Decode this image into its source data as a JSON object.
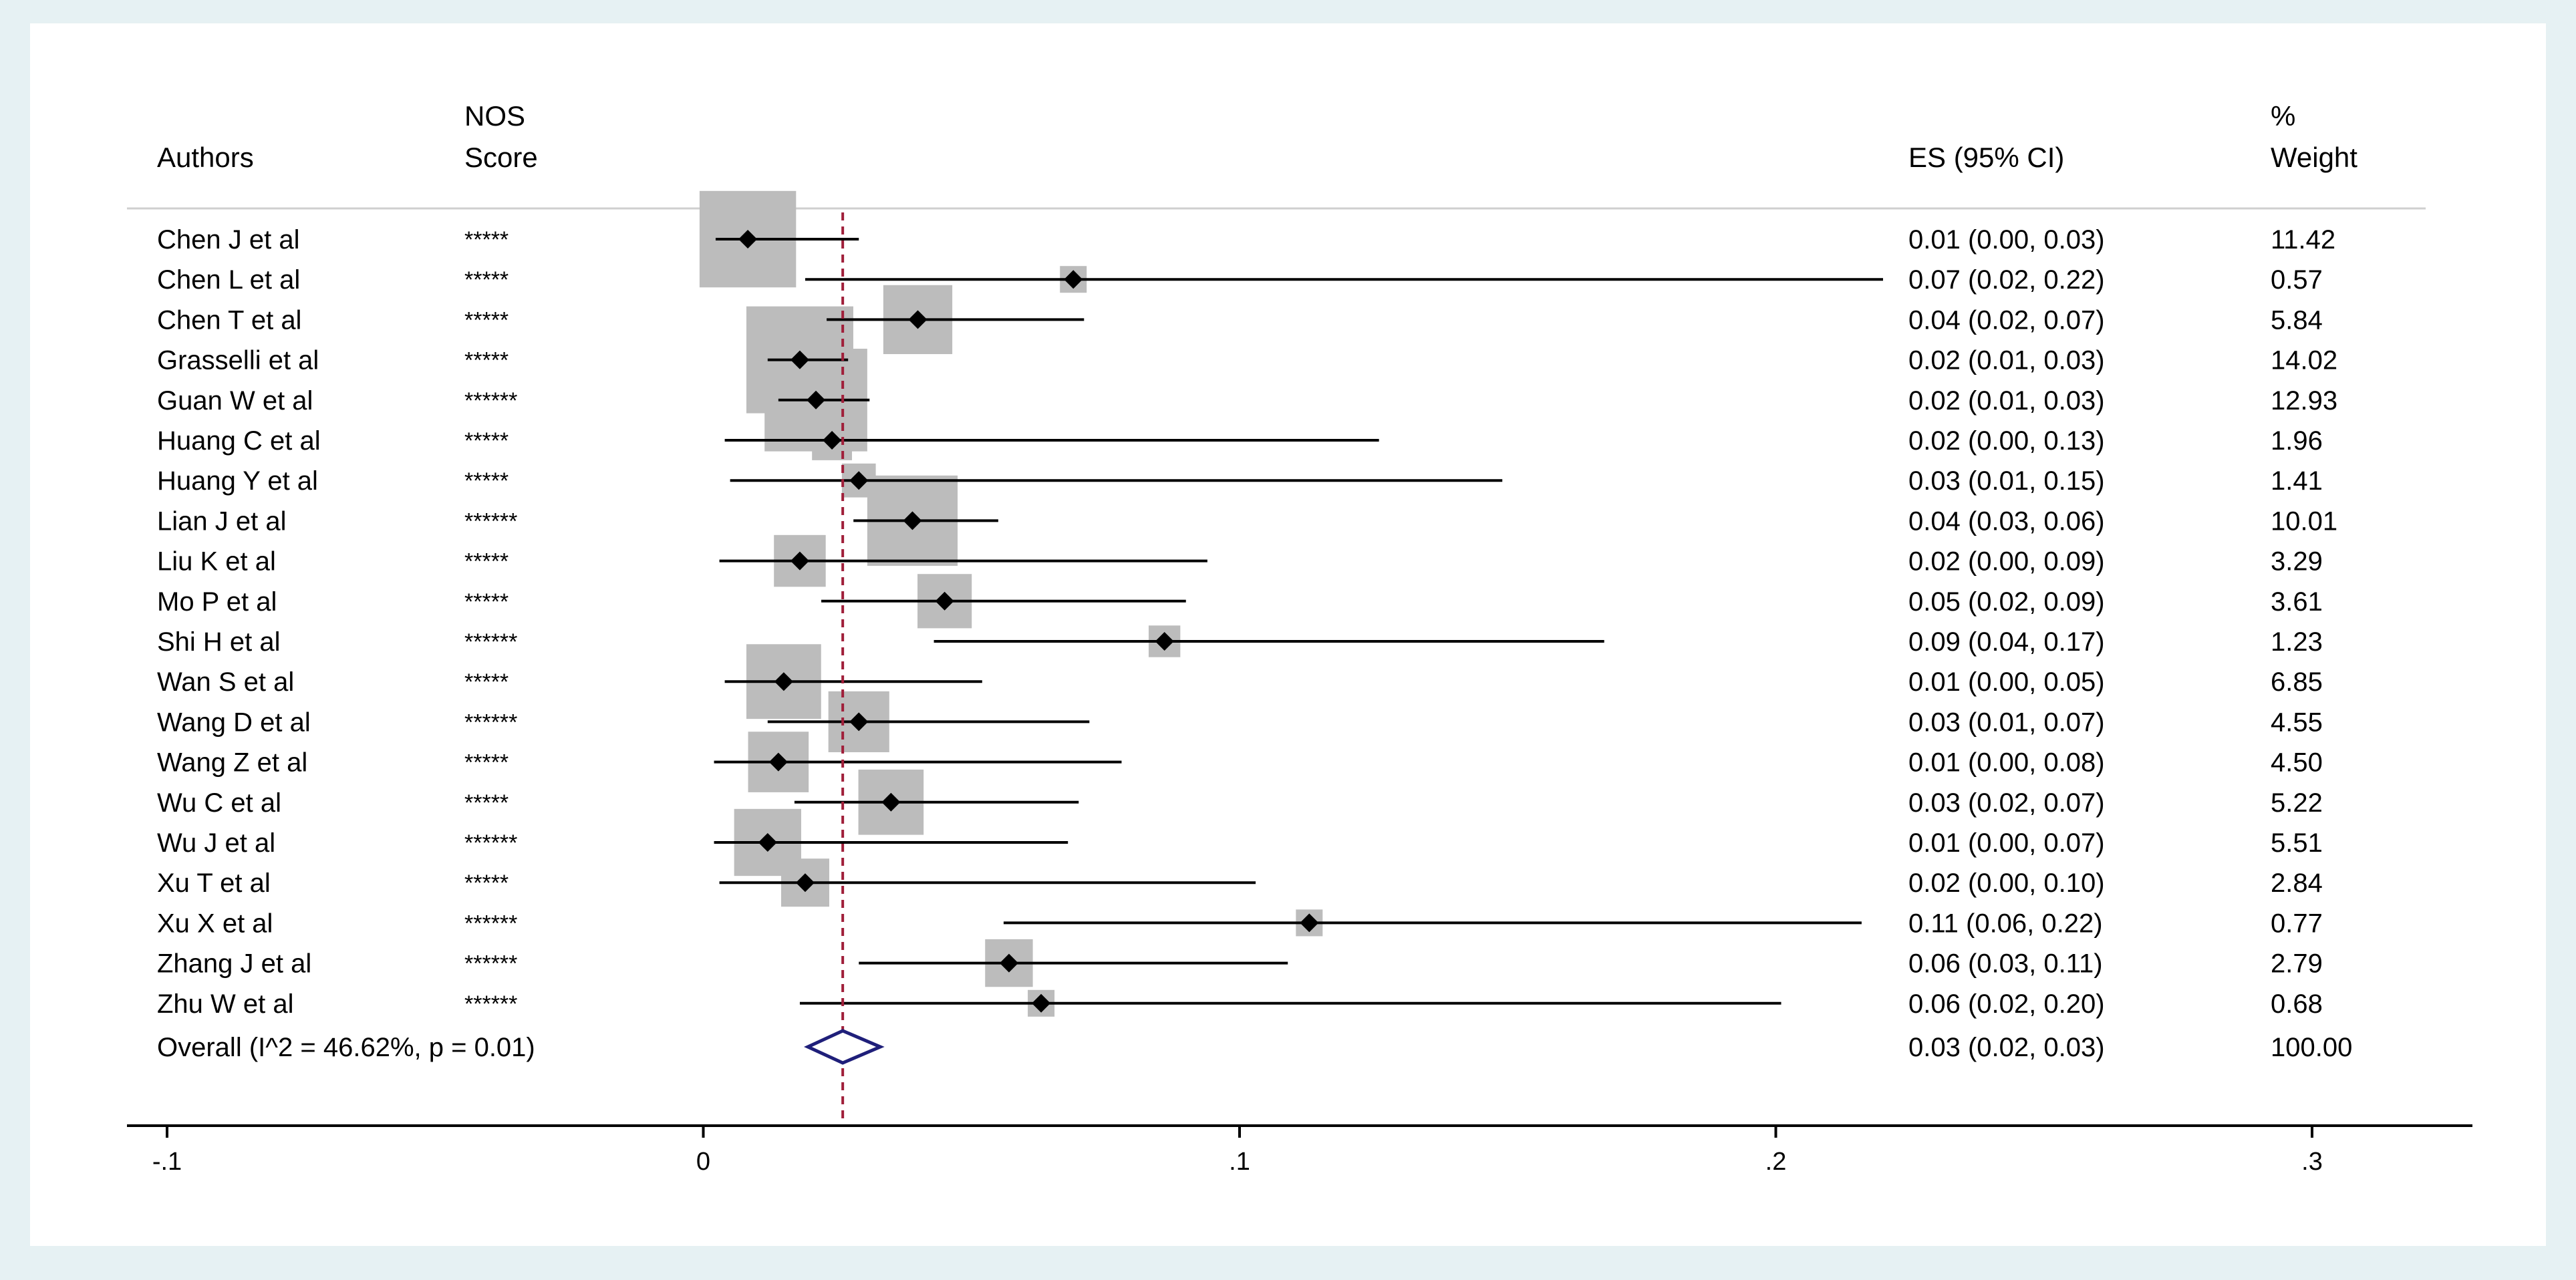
{
  "colors": {
    "outer_background": "#e6f1f3",
    "panel_background": "#ffffff",
    "weight_box": "#bcbcbc",
    "ci_line": "#000000",
    "overall_diamond": "#1f1f7a",
    "reference_line": "#a01f3a"
  },
  "headers": {
    "authors": "Authors",
    "nos_line1": "NOS",
    "nos_line2": "Score",
    "es": "ES (95% CI)",
    "weight_line1": "%",
    "weight_line2": "Weight"
  },
  "chart_data": {
    "type": "forest",
    "xlim": [
      -0.1,
      0.3
    ],
    "x_ticks": [
      -0.1,
      0,
      0.1,
      0.2,
      0.3
    ],
    "x_tick_labels": [
      "-.1",
      "0",
      ".1",
      ".2",
      ".3"
    ],
    "reference_line": 0.026,
    "studies": [
      {
        "author": "Chen J et al",
        "nos": "*****",
        "es": 0.0083,
        "lo": 0.0023,
        "hi": 0.029,
        "es_text": "0.01 (0.00, 0.03)",
        "weight": 11.42
      },
      {
        "author": "Chen L et al",
        "nos": "*****",
        "es": 0.069,
        "lo": 0.019,
        "hi": 0.22,
        "es_text": "0.07 (0.02, 0.22)",
        "weight": 0.57
      },
      {
        "author": "Chen T et al",
        "nos": "*****",
        "es": 0.04,
        "lo": 0.023,
        "hi": 0.071,
        "es_text": "0.04 (0.02, 0.07)",
        "weight": 5.84
      },
      {
        "author": "Grasselli et al",
        "nos": "*****",
        "es": 0.018,
        "lo": 0.012,
        "hi": 0.027,
        "es_text": "0.02 (0.01, 0.03)",
        "weight": 14.02
      },
      {
        "author": "Guan W et al",
        "nos": "******",
        "es": 0.021,
        "lo": 0.014,
        "hi": 0.031,
        "es_text": "0.02 (0.01, 0.03)",
        "weight": 12.93
      },
      {
        "author": "Huang C et al",
        "nos": "*****",
        "es": 0.024,
        "lo": 0.004,
        "hi": 0.126,
        "es_text": "0.02 (0.00, 0.13)",
        "weight": 1.96
      },
      {
        "author": "Huang Y et al",
        "nos": "*****",
        "es": 0.029,
        "lo": 0.005,
        "hi": 0.149,
        "es_text": "0.03 (0.01, 0.15)",
        "weight": 1.41
      },
      {
        "author": "Lian J et al",
        "nos": "******",
        "es": 0.039,
        "lo": 0.028,
        "hi": 0.055,
        "es_text": "0.04 (0.03, 0.06)",
        "weight": 10.01
      },
      {
        "author": "Liu K et al",
        "nos": "*****",
        "es": 0.018,
        "lo": 0.003,
        "hi": 0.094,
        "es_text": "0.02 (0.00, 0.09)",
        "weight": 3.29
      },
      {
        "author": "Mo P et al",
        "nos": "*****",
        "es": 0.045,
        "lo": 0.022,
        "hi": 0.09,
        "es_text": "0.05 (0.02, 0.09)",
        "weight": 3.61
      },
      {
        "author": "Shi H et al",
        "nos": "******",
        "es": 0.086,
        "lo": 0.043,
        "hi": 0.168,
        "es_text": "0.09 (0.04, 0.17)",
        "weight": 1.23
      },
      {
        "author": "Wan S et al",
        "nos": "*****",
        "es": 0.015,
        "lo": 0.004,
        "hi": 0.052,
        "es_text": "0.01 (0.00, 0.05)",
        "weight": 6.85
      },
      {
        "author": "Wang D et al",
        "nos": "******",
        "es": 0.029,
        "lo": 0.012,
        "hi": 0.072,
        "es_text": "0.03 (0.01, 0.07)",
        "weight": 4.55
      },
      {
        "author": "Wang Z et al",
        "nos": "*****",
        "es": 0.014,
        "lo": 0.002,
        "hi": 0.078,
        "es_text": "0.01 (0.00, 0.08)",
        "weight": 4.5
      },
      {
        "author": "Wu C et al",
        "nos": "*****",
        "es": 0.035,
        "lo": 0.017,
        "hi": 0.07,
        "es_text": "0.03 (0.02, 0.07)",
        "weight": 5.22
      },
      {
        "author": "Wu J et al",
        "nos": "******",
        "es": 0.012,
        "lo": 0.002,
        "hi": 0.068,
        "es_text": "0.01 (0.00, 0.07)",
        "weight": 5.51
      },
      {
        "author": "Xu T et al",
        "nos": "*****",
        "es": 0.019,
        "lo": 0.003,
        "hi": 0.103,
        "es_text": "0.02 (0.00, 0.10)",
        "weight": 2.84
      },
      {
        "author": "Xu X et al",
        "nos": "******",
        "es": 0.113,
        "lo": 0.056,
        "hi": 0.216,
        "es_text": "0.11 (0.06, 0.22)",
        "weight": 0.77
      },
      {
        "author": "Zhang J et al",
        "nos": "******",
        "es": 0.057,
        "lo": 0.029,
        "hi": 0.109,
        "es_text": "0.06 (0.03, 0.11)",
        "weight": 2.79
      },
      {
        "author": "Zhu W et al",
        "nos": "******",
        "es": 0.063,
        "lo": 0.018,
        "hi": 0.201,
        "es_text": "0.06 (0.02, 0.20)",
        "weight": 0.68
      }
    ],
    "overall": {
      "label": "Overall  (I^2 = 46.62%, p = 0.01)",
      "es": 0.026,
      "lo": 0.0195,
      "hi": 0.033,
      "es_text": "0.03 (0.02, 0.03)",
      "weight_text": "100.00"
    }
  }
}
